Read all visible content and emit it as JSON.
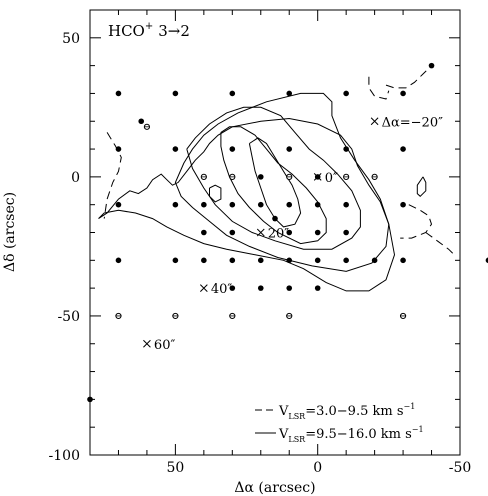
{
  "chart_data": {
    "type": "scatter",
    "title": "HCO",
    "title_sup": "+",
    "title_suffix": "3→2",
    "xlabel": "Δα (arcsec)",
    "ylabel": "Δδ (arcsec)",
    "xlim": [
      -50,
      80
    ],
    "ylim": [
      -100,
      60
    ],
    "x_reversed": true,
    "x_ticks": [
      {
        "value": 50,
        "label": "50"
      },
      {
        "value": 0,
        "label": "0"
      },
      {
        "value": -50,
        "label": "-50"
      }
    ],
    "y_ticks": [
      {
        "value": 50,
        "label": "50"
      },
      {
        "value": 0,
        "label": "0"
      },
      {
        "value": -50,
        "label": "-50"
      },
      {
        "value": -100,
        "label": "-100"
      }
    ],
    "filled_points": [
      [
        70,
        30
      ],
      [
        50,
        30
      ],
      [
        30,
        30
      ],
      [
        10,
        30
      ],
      [
        -10,
        30
      ],
      [
        -30,
        30
      ],
      [
        70,
        10
      ],
      [
        50,
        10
      ],
      [
        30,
        10
      ],
      [
        10,
        10
      ],
      [
        -10,
        10
      ],
      [
        -30,
        10
      ],
      [
        20,
        0
      ],
      [
        0,
        0
      ],
      [
        70,
        -10
      ],
      [
        50,
        -10
      ],
      [
        40,
        -10
      ],
      [
        30,
        -10
      ],
      [
        20,
        -10
      ],
      [
        10,
        -10
      ],
      [
        0,
        -10
      ],
      [
        -10,
        -10
      ],
      [
        -30,
        -10
      ],
      [
        40,
        -20
      ],
      [
        30,
        -20
      ],
      [
        10,
        -20
      ],
      [
        0,
        -20
      ],
      [
        -10,
        -20
      ],
      [
        70,
        -30
      ],
      [
        50,
        -30
      ],
      [
        40,
        -30
      ],
      [
        30,
        -30
      ],
      [
        20,
        -30
      ],
      [
        10,
        -30
      ],
      [
        0,
        -30
      ],
      [
        -10,
        -30
      ],
      [
        -20,
        -30
      ],
      [
        -30,
        -30
      ],
      [
        30,
        -40
      ],
      [
        20,
        -40
      ],
      [
        10,
        -40
      ],
      [
        0,
        -40
      ],
      [
        62,
        20
      ],
      [
        -40,
        40
      ],
      [
        15,
        -15
      ],
      [
        -60,
        -30
      ],
      [
        80,
        -80
      ]
    ],
    "open_points": [
      [
        40,
        0
      ],
      [
        30,
        0
      ],
      [
        10,
        0
      ],
      [
        -10,
        0
      ],
      [
        -20,
        0
      ],
      [
        70,
        -50
      ],
      [
        50,
        -50
      ],
      [
        30,
        -50
      ],
      [
        10,
        -50
      ],
      [
        -30,
        -50
      ],
      [
        60,
        18
      ]
    ],
    "markers": [
      {
        "x": -20,
        "y": 20,
        "label": "Δα=−20″"
      },
      {
        "x": 0,
        "y": 0,
        "label": "0″"
      },
      {
        "x": 20,
        "y": -20,
        "label": "20″"
      },
      {
        "x": 40,
        "y": -40,
        "label": "40″"
      },
      {
        "x": 60,
        "y": -60,
        "label": "60″"
      }
    ],
    "legend": {
      "placement": "bottom-right",
      "entries": [
        {
          "style": "dashed",
          "prefix": "V",
          "sub": "LSR",
          "text": "=3.0−9.5 km s",
          "sup": "−1"
        },
        {
          "style": "solid",
          "prefix": "V",
          "sub": "LSR",
          "text": "=9.5−16.0 km s",
          "sup": "−1"
        }
      ]
    },
    "contours_solid": [
      [
        [
          77,
          -15
        ],
        [
          74,
          -13
        ],
        [
          70,
          -8
        ],
        [
          66,
          -5
        ],
        [
          63,
          -6
        ],
        [
          60,
          -4
        ],
        [
          58,
          -1
        ],
        [
          55,
          1
        ],
        [
          53,
          -1
        ],
        [
          51,
          -3
        ],
        [
          49,
          -2
        ],
        [
          46,
          2
        ],
        [
          43,
          6
        ],
        [
          40,
          9
        ],
        [
          38,
          12
        ],
        [
          35,
          15
        ],
        [
          30,
          18
        ],
        [
          20,
          20
        ],
        [
          10,
          21
        ],
        [
          0,
          19
        ],
        [
          -8,
          15
        ],
        [
          -12,
          10
        ],
        [
          -14,
          4
        ],
        [
          -18,
          -3
        ],
        [
          -22,
          -9
        ],
        [
          -25,
          -17
        ],
        [
          -27,
          -28
        ],
        [
          -24,
          -37
        ],
        [
          -18,
          -41
        ],
        [
          -10,
          -41
        ],
        [
          -3,
          -38
        ],
        [
          5,
          -33
        ],
        [
          12,
          -30
        ],
        [
          22,
          -28
        ],
        [
          32,
          -26
        ],
        [
          40,
          -24
        ],
        [
          47,
          -21
        ],
        [
          53,
          -18
        ],
        [
          58,
          -15
        ],
        [
          64,
          -13
        ],
        [
          70,
          -12
        ],
        [
          75,
          -13
        ],
        [
          77,
          -15
        ]
      ],
      [
        [
          47,
          5
        ],
        [
          44,
          10
        ],
        [
          40,
          15
        ],
        [
          35,
          19
        ],
        [
          28,
          23
        ],
        [
          18,
          27
        ],
        [
          6,
          30
        ],
        [
          -2,
          30
        ],
        [
          -5,
          27
        ],
        [
          -5,
          22
        ],
        [
          -8,
          14
        ],
        [
          -13,
          6
        ],
        [
          -18,
          -1
        ],
        [
          -22,
          -8
        ],
        [
          -25,
          -17
        ],
        [
          -24,
          -25
        ],
        [
          -19,
          -31
        ],
        [
          -10,
          -34
        ],
        [
          2,
          -32
        ],
        [
          14,
          -29
        ],
        [
          24,
          -25
        ],
        [
          32,
          -21
        ],
        [
          38,
          -16
        ],
        [
          44,
          -11
        ],
        [
          48,
          -7
        ],
        [
          50,
          -2
        ],
        [
          47,
          5
        ]
      ],
      [
        [
          46,
          10
        ],
        [
          43,
          14
        ],
        [
          38,
          19
        ],
        [
          32,
          23
        ],
        [
          26,
          25
        ],
        [
          20,
          25
        ],
        [
          13,
          22
        ],
        [
          8,
          16
        ],
        [
          3,
          10
        ],
        [
          -2,
          6
        ],
        [
          -7,
          1
        ],
        [
          -12,
          -5
        ],
        [
          -15,
          -12
        ],
        [
          -15,
          -18
        ],
        [
          -12,
          -22
        ],
        [
          -5,
          -26
        ],
        [
          5,
          -26
        ],
        [
          15,
          -23
        ],
        [
          23,
          -20
        ],
        [
          30,
          -16
        ],
        [
          36,
          -10
        ],
        [
          40,
          -4
        ],
        [
          44,
          3
        ],
        [
          46,
          10
        ]
      ],
      [
        [
          34,
          16
        ],
        [
          31,
          18
        ],
        [
          27,
          18
        ],
        [
          22,
          15
        ],
        [
          18,
          10
        ],
        [
          14,
          5
        ],
        [
          9,
          1
        ],
        [
          4,
          -4
        ],
        [
          0,
          -9
        ],
        [
          -3,
          -15
        ],
        [
          -3,
          -20
        ],
        [
          0,
          -23
        ],
        [
          6,
          -24
        ],
        [
          14,
          -20
        ],
        [
          19,
          -16
        ],
        [
          24,
          -11
        ],
        [
          28,
          -6
        ],
        [
          31,
          0
        ],
        [
          33,
          6
        ],
        [
          34,
          11
        ],
        [
          34,
          16
        ]
      ],
      [
        [
          24,
          12
        ],
        [
          21,
          14
        ],
        [
          18,
          12
        ],
        [
          15,
          7
        ],
        [
          12,
          2
        ],
        [
          9,
          -3
        ],
        [
          7,
          -8
        ],
        [
          6,
          -13
        ],
        [
          8,
          -17
        ],
        [
          12,
          -18
        ],
        [
          15,
          -15
        ],
        [
          18,
          -10
        ],
        [
          20,
          -4
        ],
        [
          22,
          2
        ],
        [
          23,
          7
        ],
        [
          24,
          12
        ]
      ],
      [
        [
          38,
          -4
        ],
        [
          36,
          -3
        ],
        [
          34,
          -4
        ],
        [
          34,
          -8
        ],
        [
          36,
          -9
        ],
        [
          38,
          -7
        ],
        [
          38,
          -4
        ]
      ],
      [
        [
          -37,
          0
        ],
        [
          -38,
          -2
        ],
        [
          -38,
          -5
        ],
        [
          -36,
          -7
        ],
        [
          -35,
          -6
        ],
        [
          -35,
          -3
        ],
        [
          -37,
          0
        ]
      ]
    ],
    "contours_dashed": [
      [
        [
          74,
          16
        ],
        [
          71,
          11
        ],
        [
          69,
          7
        ],
        [
          70,
          2
        ],
        [
          72,
          -2
        ],
        [
          74,
          -8
        ],
        [
          75,
          -15
        ]
      ],
      [
        [
          -18,
          36
        ],
        [
          -18,
          32
        ],
        [
          -20,
          29
        ],
        [
          -24,
          28
        ],
        [
          -25,
          31
        ]
      ],
      [
        [
          -24,
          33
        ],
        [
          -27,
          32
        ],
        [
          -31,
          32
        ],
        [
          -34,
          34
        ],
        [
          -37,
          37
        ],
        [
          -39,
          39
        ]
      ],
      [
        [
          -32,
          -10
        ],
        [
          -36,
          -12
        ],
        [
          -39,
          -14
        ],
        [
          -40,
          -17
        ],
        [
          -38,
          -20
        ],
        [
          -33,
          -22
        ],
        [
          -29,
          -22
        ]
      ],
      [
        [
          -38,
          -20
        ],
        [
          -42,
          -23
        ],
        [
          -46,
          -26
        ],
        [
          -48,
          -28
        ]
      ]
    ]
  }
}
